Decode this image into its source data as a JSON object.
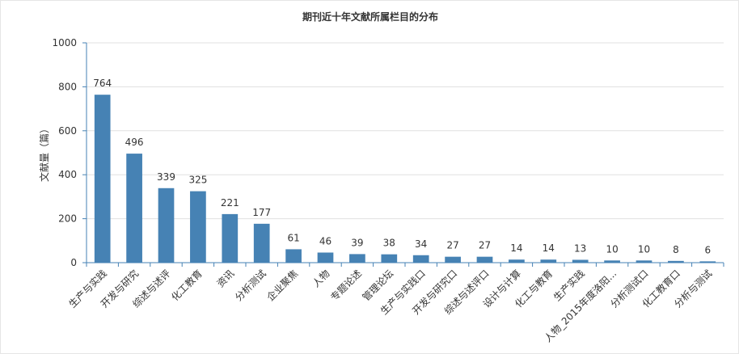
{
  "chart_data": {
    "type": "bar",
    "title": "期刊近十年文献所属栏目的分布",
    "ylabel": "文献量（篇）",
    "xlabel": "",
    "ylim": [
      0,
      1000
    ],
    "yticks": [
      0,
      200,
      400,
      600,
      800,
      1000
    ],
    "grid": true,
    "bar_color": "#4682b4",
    "data_labels": true,
    "categories": [
      "生产与实践",
      "开发与研究",
      "综述与述评",
      "化工教育",
      "资讯",
      "分析测试",
      "企业聚焦",
      "人物",
      "专题论述",
      "管理论坛",
      "生产与实践口",
      "开发与研究口",
      "综述与述评口",
      "设计与计算",
      "化工与教育",
      "生产实践",
      "人物_2015年度洛阳...",
      "分析测试口",
      "化工教育口",
      "分析与测试"
    ],
    "values": [
      764,
      496,
      339,
      325,
      221,
      177,
      61,
      46,
      39,
      38,
      34,
      27,
      27,
      14,
      14,
      13,
      10,
      10,
      8,
      6
    ]
  }
}
